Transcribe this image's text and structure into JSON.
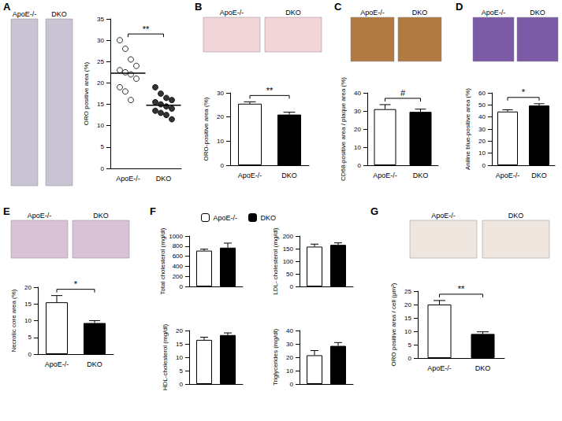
{
  "chart_data": [
    {
      "panel": "A",
      "type": "scatter",
      "image_labels": [
        "ApoE-/-",
        "DKO"
      ],
      "categories": [
        "ApoE-/-",
        "DKO"
      ],
      "values": [
        [
          30,
          28,
          25.5,
          24,
          23,
          22.5,
          22,
          21,
          19,
          18,
          16
        ],
        [
          19,
          17.5,
          16.5,
          16,
          15.5,
          15,
          14.5,
          14,
          13.5,
          13,
          12.5,
          11.5
        ]
      ],
      "medians": [
        22.3,
        14.8
      ],
      "colors": [
        "#ffffff",
        "#000000"
      ],
      "y_label": "ORO positive area (%)",
      "ylim": [
        0,
        35
      ],
      "yticks": [
        0,
        5,
        10,
        15,
        20,
        25,
        30,
        35
      ],
      "annotation": "**"
    },
    {
      "panel": "B",
      "type": "bar",
      "image_labels": [
        "ApoE-/-",
        "DKO"
      ],
      "categories": [
        "ApoE-/-",
        "DKO"
      ],
      "values": [
        25.5,
        21
      ],
      "errors": [
        0.8,
        1.0
      ],
      "colors": [
        "#ffffff",
        "#000000"
      ],
      "y_label": "ORO-positive area (%)",
      "ylim": [
        0,
        30
      ],
      "yticks": [
        0,
        10,
        20,
        30
      ],
      "annotation": "**"
    },
    {
      "panel": "C",
      "type": "bar",
      "image_labels": [
        "ApoE-/-",
        "DKO"
      ],
      "categories": [
        "ApoE-/-",
        "DKO"
      ],
      "values": [
        31,
        29.5
      ],
      "errors": [
        2.5,
        1.5
      ],
      "colors": [
        "#ffffff",
        "#000000"
      ],
      "y_label": "CD68-positive area / plaque area (%)",
      "ylim": [
        0,
        40
      ],
      "yticks": [
        0,
        10,
        20,
        30,
        40
      ],
      "annotation": "#"
    },
    {
      "panel": "D",
      "type": "bar",
      "image_labels": [
        "ApoE-/-",
        "DKO"
      ],
      "categories": [
        "ApoE-/-",
        "DKO"
      ],
      "values": [
        44.5,
        49.5
      ],
      "errors": [
        1.5,
        1.5
      ],
      "colors": [
        "#ffffff",
        "#000000"
      ],
      "y_label": "Aniline blue-positive area (%)",
      "ylim": [
        0,
        60
      ],
      "yticks": [
        0,
        10,
        20,
        30,
        40,
        50,
        60
      ],
      "annotation": "*"
    },
    {
      "panel": "E",
      "type": "bar",
      "image_labels": [
        "ApoE-/-",
        "DKO"
      ],
      "categories": [
        "ApoE-/-",
        "DKO"
      ],
      "values": [
        15.5,
        9.3
      ],
      "errors": [
        2.0,
        0.7
      ],
      "colors": [
        "#ffffff",
        "#000000"
      ],
      "y_label": "Necrotic core area (%)",
      "ylim": [
        0,
        20
      ],
      "yticks": [
        0,
        5,
        10,
        15,
        20
      ],
      "annotation": "*"
    },
    {
      "panel": "F",
      "type": "bar",
      "categories": [
        null
      ],
      "series": [
        {
          "name": "ApoE-/-",
          "color": "#ffffff",
          "values": [
            710
          ],
          "errors": [
            30
          ]
        },
        {
          "name": "DKO",
          "color": "#000000",
          "values": [
            770
          ],
          "errors": [
            90
          ]
        }
      ],
      "y_label": "Total cholesterol (mg/dl)",
      "ylim": [
        0,
        1000
      ],
      "yticks": [
        0,
        200,
        400,
        600,
        800,
        1000
      ],
      "tick_labels": "y",
      "legend": "top"
    },
    {
      "type": "bar",
      "categories": [
        null
      ],
      "series": [
        {
          "name": "ApoE-/-",
          "color": "#ffffff",
          "values": [
            158
          ],
          "errors": [
            10
          ]
        },
        {
          "name": "DKO",
          "color": "#000000",
          "values": [
            165
          ],
          "errors": [
            8
          ]
        }
      ],
      "y_label": "LDL- cholesterol (mg/dl)",
      "ylim": [
        0,
        200
      ],
      "yticks": [
        0,
        50,
        100,
        150,
        200
      ],
      "tick_labels": "y"
    },
    {
      "type": "bar",
      "categories": [
        null
      ],
      "series": [
        {
          "name": "ApoE-/-",
          "color": "#ffffff",
          "values": [
            16.5
          ],
          "errors": [
            1.0
          ]
        },
        {
          "name": "DKO",
          "color": "#000000",
          "values": [
            18.3
          ],
          "errors": [
            0.8
          ]
        }
      ],
      "y_label": "HDL-cholesterol (mg/dl)",
      "ylim": [
        0,
        20
      ],
      "yticks": [
        0,
        5,
        10,
        15,
        20
      ],
      "tick_labels": "y"
    },
    {
      "type": "bar",
      "categories": [
        null
      ],
      "series": [
        {
          "name": "ApoE-/-",
          "color": "#ffffff",
          "values": [
            21.5
          ],
          "errors": [
            3.5
          ]
        },
        {
          "name": "DKO",
          "color": "#000000",
          "values": [
            28.5
          ],
          "errors": [
            2.5
          ]
        }
      ],
      "y_label": "Triglycerides (mg/dl)",
      "ylim": [
        0,
        40
      ],
      "yticks": [
        0,
        10,
        20,
        30,
        40
      ],
      "tick_labels": "y"
    },
    {
      "panel": "G",
      "type": "bar",
      "image_labels": [
        "ApoE-/-",
        "DKO"
      ],
      "categories": [
        "ApoE-/-",
        "DKO"
      ],
      "values": [
        20,
        9
      ],
      "errors": [
        1.5,
        0.8
      ],
      "colors": [
        "#ffffff",
        "#000000"
      ],
      "y_label": "ORO positive area / cell (μm²)",
      "ylim": [
        0,
        25
      ],
      "yticks": [
        0,
        5,
        10,
        15,
        20,
        25
      ],
      "annotation": "**"
    }
  ]
}
